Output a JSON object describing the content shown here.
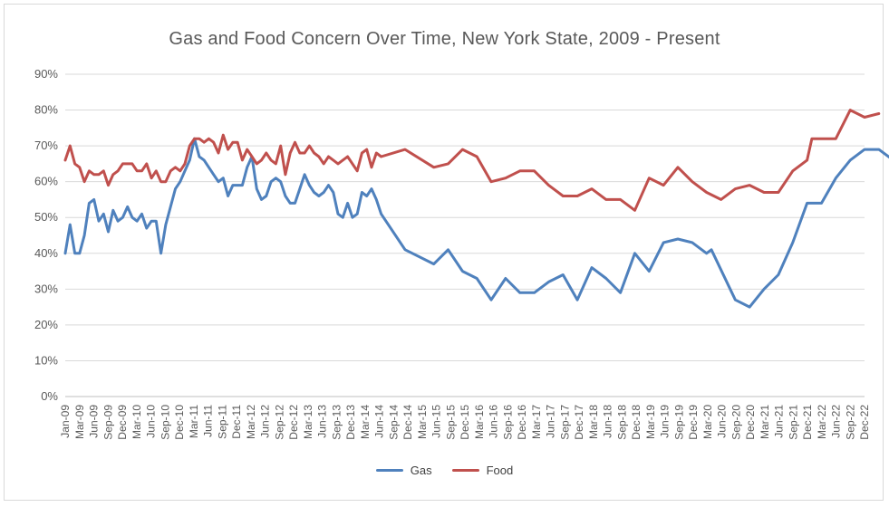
{
  "chart_data": {
    "type": "line",
    "title": "Gas and Food Concern Over Time, New York State, 2009 - Present",
    "xlabel": "",
    "ylabel": "",
    "ylim": [
      0,
      90
    ],
    "ytick_labels": [
      "0%",
      "10%",
      "20%",
      "30%",
      "40%",
      "50%",
      "60%",
      "70%",
      "80%",
      "90%"
    ],
    "xlim": [
      "2009-01",
      "2022-12"
    ],
    "xtick_labels": [
      "Jan-09",
      "Mar-09",
      "Jun-09",
      "Sep-09",
      "Dec-09",
      "Mar-10",
      "Jun-10",
      "Sep-10",
      "Dec-10",
      "Mar-11",
      "Jun-11",
      "Sep-11",
      "Dec-11",
      "Mar-12",
      "Jun-12",
      "Sep-12",
      "Dec-12",
      "Mar-13",
      "Jun-13",
      "Sep-13",
      "Dec-13",
      "Mar-14",
      "Jun-14",
      "Sep-14",
      "Dec-14",
      "Mar-15",
      "Jun-15",
      "Sep-15",
      "Dec-15",
      "Mar-16",
      "Jun-16",
      "Sep-16",
      "Dec-16",
      "Mar-17",
      "Jun-17",
      "Sep-17",
      "Dec-17",
      "Mar-18",
      "Jun-18",
      "Sep-18",
      "Dec-18",
      "Mar-19",
      "Jun-19",
      "Sep-19",
      "Dec-19",
      "Mar-20",
      "Jun-20",
      "Sep-20",
      "Dec-20",
      "Mar-21",
      "Jun-21",
      "Sep-21",
      "Dec-21",
      "Mar-22",
      "Jun-22",
      "Sep-22",
      "Dec-22"
    ],
    "grid": "horizontal",
    "legend_position": "bottom",
    "series": [
      {
        "name": "Gas",
        "color": "#4f81bd",
        "points": [
          [
            "2009-01",
            40
          ],
          [
            "2009-02",
            48
          ],
          [
            "2009-03",
            40
          ],
          [
            "2009-04",
            40
          ],
          [
            "2009-05",
            45
          ],
          [
            "2009-06",
            54
          ],
          [
            "2009-07",
            55
          ],
          [
            "2009-08",
            49
          ],
          [
            "2009-09",
            51
          ],
          [
            "2009-10",
            46
          ],
          [
            "2009-11",
            52
          ],
          [
            "2009-12",
            49
          ],
          [
            "2010-01",
            50
          ],
          [
            "2010-02",
            53
          ],
          [
            "2010-03",
            50
          ],
          [
            "2010-04",
            49
          ],
          [
            "2010-05",
            51
          ],
          [
            "2010-06",
            47
          ],
          [
            "2010-07",
            49
          ],
          [
            "2010-08",
            49
          ],
          [
            "2010-09",
            40
          ],
          [
            "2010-10",
            48
          ],
          [
            "2010-11",
            53
          ],
          [
            "2010-12",
            58
          ],
          [
            "2011-01",
            60
          ],
          [
            "2011-02",
            63
          ],
          [
            "2011-03",
            66
          ],
          [
            "2011-04",
            72
          ],
          [
            "2011-05",
            67
          ],
          [
            "2011-06",
            66
          ],
          [
            "2011-07",
            64
          ],
          [
            "2011-08",
            62
          ],
          [
            "2011-09",
            60
          ],
          [
            "2011-10",
            61
          ],
          [
            "2011-11",
            56
          ],
          [
            "2011-12",
            59
          ],
          [
            "2012-01",
            59
          ],
          [
            "2012-02",
            59
          ],
          [
            "2012-03",
            64
          ],
          [
            "2012-04",
            67
          ],
          [
            "2012-05",
            58
          ],
          [
            "2012-06",
            55
          ],
          [
            "2012-07",
            56
          ],
          [
            "2012-08",
            60
          ],
          [
            "2012-09",
            61
          ],
          [
            "2012-10",
            60
          ],
          [
            "2012-11",
            56
          ],
          [
            "2012-12",
            54
          ],
          [
            "2013-01",
            54
          ],
          [
            "2013-02",
            58
          ],
          [
            "2013-03",
            62
          ],
          [
            "2013-04",
            59
          ],
          [
            "2013-05",
            57
          ],
          [
            "2013-06",
            56
          ],
          [
            "2013-07",
            57
          ],
          [
            "2013-08",
            59
          ],
          [
            "2013-09",
            57
          ],
          [
            "2013-10",
            51
          ],
          [
            "2013-11",
            50
          ],
          [
            "2013-12",
            54
          ],
          [
            "2014-01",
            50
          ],
          [
            "2014-02",
            51
          ],
          [
            "2014-03",
            57
          ],
          [
            "2014-04",
            56
          ],
          [
            "2014-05",
            58
          ],
          [
            "2014-06",
            55
          ],
          [
            "2014-07",
            51
          ],
          [
            "2014-12",
            41
          ],
          [
            "2015-06",
            37
          ],
          [
            "2015-09",
            41
          ],
          [
            "2015-12",
            35
          ],
          [
            "2016-03",
            33
          ],
          [
            "2016-06",
            27
          ],
          [
            "2016-09",
            33
          ],
          [
            "2016-12",
            29
          ],
          [
            "2017-03",
            29
          ],
          [
            "2017-06",
            32
          ],
          [
            "2017-09",
            34
          ],
          [
            "2017-12",
            27
          ],
          [
            "2018-03",
            36
          ],
          [
            "2018-06",
            33
          ],
          [
            "2018-09",
            29
          ],
          [
            "2018-12",
            40
          ],
          [
            "2019-03",
            35
          ],
          [
            "2019-06",
            43
          ],
          [
            "2019-09",
            44
          ],
          [
            "2019-12",
            43
          ],
          [
            "2020-03",
            40
          ],
          [
            "2020-04",
            41
          ],
          [
            "2020-09",
            27
          ],
          [
            "2020-12",
            25
          ],
          [
            "2021-03",
            30
          ],
          [
            "2021-06",
            34
          ],
          [
            "2021-09",
            43
          ],
          [
            "2021-12",
            54
          ],
          [
            "2022-03",
            54
          ],
          [
            "2022-06",
            61
          ],
          [
            "2022-09",
            66
          ],
          [
            "2022-12",
            69
          ],
          [
            "2023-03",
            69
          ],
          [
            "2023-06",
            66
          ]
        ]
      },
      {
        "name": "Food",
        "color": "#c0504d",
        "points": [
          [
            "2009-01",
            66
          ],
          [
            "2009-02",
            70
          ],
          [
            "2009-03",
            65
          ],
          [
            "2009-04",
            64
          ],
          [
            "2009-05",
            60
          ],
          [
            "2009-06",
            63
          ],
          [
            "2009-07",
            62
          ],
          [
            "2009-08",
            62
          ],
          [
            "2009-09",
            63
          ],
          [
            "2009-10",
            59
          ],
          [
            "2009-11",
            62
          ],
          [
            "2009-12",
            63
          ],
          [
            "2010-01",
            65
          ],
          [
            "2010-02",
            65
          ],
          [
            "2010-03",
            65
          ],
          [
            "2010-04",
            63
          ],
          [
            "2010-05",
            63
          ],
          [
            "2010-06",
            65
          ],
          [
            "2010-07",
            61
          ],
          [
            "2010-08",
            63
          ],
          [
            "2010-09",
            60
          ],
          [
            "2010-10",
            60
          ],
          [
            "2010-11",
            63
          ],
          [
            "2010-12",
            64
          ],
          [
            "2011-01",
            63
          ],
          [
            "2011-02",
            65
          ],
          [
            "2011-03",
            70
          ],
          [
            "2011-04",
            72
          ],
          [
            "2011-05",
            72
          ],
          [
            "2011-06",
            71
          ],
          [
            "2011-07",
            72
          ],
          [
            "2011-08",
            71
          ],
          [
            "2011-09",
            68
          ],
          [
            "2011-10",
            73
          ],
          [
            "2011-11",
            69
          ],
          [
            "2011-12",
            71
          ],
          [
            "2012-01",
            71
          ],
          [
            "2012-02",
            66
          ],
          [
            "2012-03",
            69
          ],
          [
            "2012-04",
            67
          ],
          [
            "2012-05",
            65
          ],
          [
            "2012-06",
            66
          ],
          [
            "2012-07",
            68
          ],
          [
            "2012-08",
            66
          ],
          [
            "2012-09",
            65
          ],
          [
            "2012-10",
            70
          ],
          [
            "2012-11",
            62
          ],
          [
            "2012-12",
            68
          ],
          [
            "2013-01",
            71
          ],
          [
            "2013-02",
            68
          ],
          [
            "2013-03",
            68
          ],
          [
            "2013-04",
            70
          ],
          [
            "2013-05",
            68
          ],
          [
            "2013-06",
            67
          ],
          [
            "2013-07",
            65
          ],
          [
            "2013-08",
            67
          ],
          [
            "2013-09",
            66
          ],
          [
            "2013-10",
            65
          ],
          [
            "2013-11",
            66
          ],
          [
            "2013-12",
            67
          ],
          [
            "2014-01",
            65
          ],
          [
            "2014-02",
            63
          ],
          [
            "2014-03",
            68
          ],
          [
            "2014-04",
            69
          ],
          [
            "2014-05",
            64
          ],
          [
            "2014-06",
            68
          ],
          [
            "2014-07",
            67
          ],
          [
            "2014-12",
            69
          ],
          [
            "2015-06",
            64
          ],
          [
            "2015-09",
            65
          ],
          [
            "2015-12",
            69
          ],
          [
            "2016-03",
            67
          ],
          [
            "2016-06",
            60
          ],
          [
            "2016-09",
            61
          ],
          [
            "2016-12",
            63
          ],
          [
            "2017-03",
            63
          ],
          [
            "2017-06",
            59
          ],
          [
            "2017-09",
            56
          ],
          [
            "2017-12",
            56
          ],
          [
            "2018-03",
            58
          ],
          [
            "2018-06",
            55
          ],
          [
            "2018-09",
            55
          ],
          [
            "2018-12",
            52
          ],
          [
            "2019-03",
            61
          ],
          [
            "2019-06",
            59
          ],
          [
            "2019-09",
            64
          ],
          [
            "2019-12",
            60
          ],
          [
            "2020-03",
            57
          ],
          [
            "2020-06",
            55
          ],
          [
            "2020-09",
            58
          ],
          [
            "2020-12",
            59
          ],
          [
            "2021-03",
            57
          ],
          [
            "2021-06",
            57
          ],
          [
            "2021-09",
            63
          ],
          [
            "2021-12",
            66
          ],
          [
            "2022-01",
            72
          ],
          [
            "2022-03",
            72
          ],
          [
            "2022-06",
            72
          ],
          [
            "2022-09",
            80
          ],
          [
            "2022-12",
            78
          ],
          [
            "2023-03",
            79
          ]
        ]
      }
    ]
  }
}
